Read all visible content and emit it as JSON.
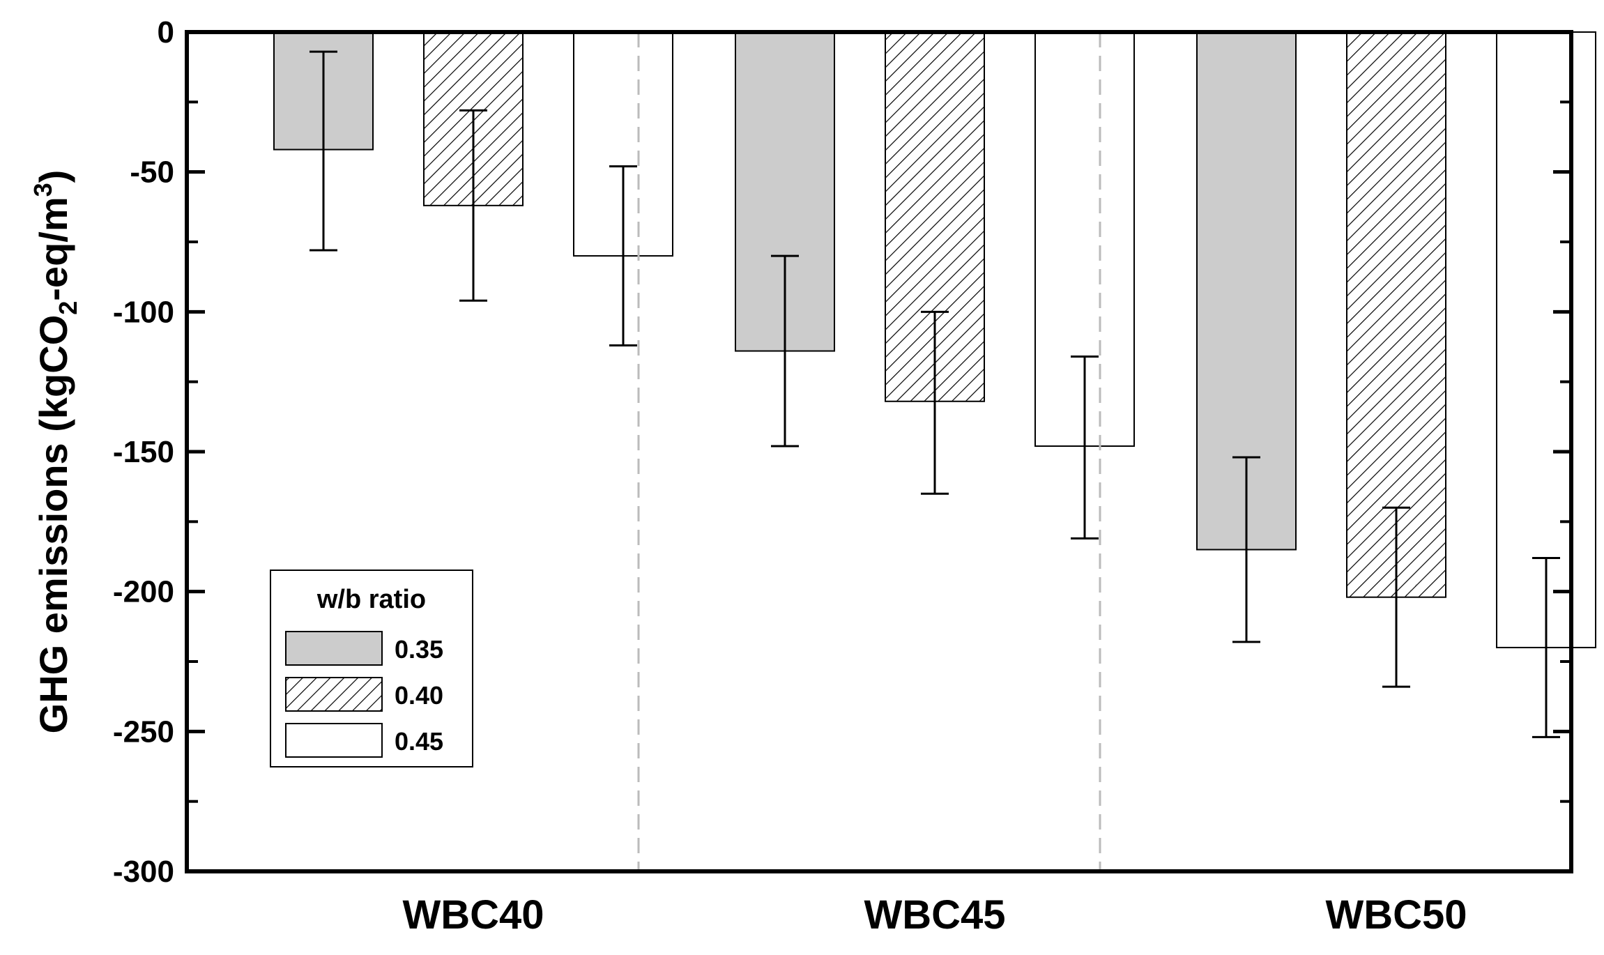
{
  "chart_data": {
    "type": "bar",
    "title": "",
    "xlabel": "",
    "ylabel": "GHG emissions (kgCO2-eq/m3)",
    "ylabel_parts": {
      "prefix": "GHG emissions (kgCO",
      "sub": "2",
      "middle": "-eq/m",
      "sup": "3",
      "suffix": ")"
    },
    "categories": [
      "WBC40",
      "WBC45",
      "WBC50"
    ],
    "ylim": [
      -300,
      0
    ],
    "yticks": [
      0,
      -50,
      -100,
      -150,
      -200,
      -250,
      -300
    ],
    "ytick_labels": [
      "0",
      "-50",
      "-100",
      "-150",
      "-200",
      "-250",
      "-300"
    ],
    "grid": false,
    "group_separators": true,
    "legend": {
      "title": "w/b ratio",
      "placement": "lower-left"
    },
    "series": [
      {
        "name": "0.35",
        "fill": "#cccccc",
        "pattern": "solid",
        "values": [
          -42,
          -114,
          -185
        ],
        "error_low": [
          -78,
          -148,
          -218
        ],
        "error_high": [
          -7,
          -80,
          -152
        ]
      },
      {
        "name": "0.40",
        "fill": "#ffffff",
        "pattern": "hatch",
        "values": [
          -62,
          -132,
          -202
        ],
        "error_low": [
          -96,
          -165,
          -234
        ],
        "error_high": [
          -28,
          -100,
          -170
        ]
      },
      {
        "name": "0.45",
        "fill": "#ffffff",
        "pattern": "none",
        "values": [
          -80,
          -148,
          -220
        ],
        "error_low": [
          -112,
          -181,
          -252
        ],
        "error_high": [
          -48,
          -116,
          -188
        ]
      }
    ]
  }
}
